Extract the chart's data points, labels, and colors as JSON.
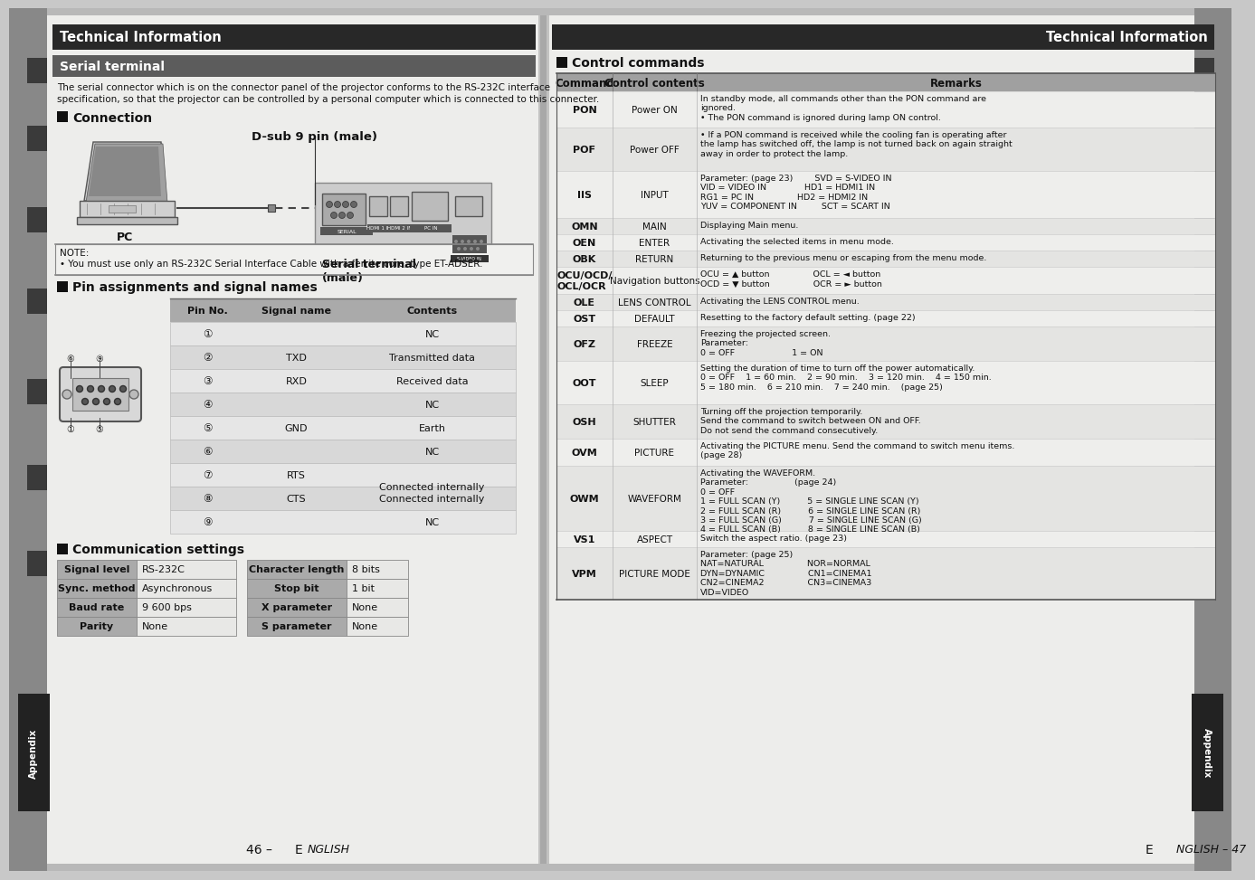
{
  "bg_color": "#c8c8c8",
  "page_bg_left": "#f0efed",
  "page_bg_right": "#f0efed",
  "header_bg": "#2a2a2a",
  "serial_header_bg": "#5a5a5a",
  "table_header_bg": "#a0a0a0",
  "table_row_light": "#e8e8e8",
  "table_row_dark": "#d4d4d4",
  "left_title": "Technical Information",
  "right_title": "Technical Information",
  "serial_terminal_title": "Serial terminal",
  "serial_desc_line1": "The serial connector which is on the connector panel of the projector conforms to the RS-232C interface",
  "serial_desc_line2": "specification, so that the projector can be controlled by a personal computer which is connected to this connecter.",
  "connection_title": "Connection",
  "dsub_label": "D-sub 9 pin (male)",
  "pc_label": "PC",
  "serial_terminal_label": "Serial terminal\n(male)",
  "note_text": "NOTE:\n• You must use only an RS-232C Serial Interface Cable with a ferrite core, type ET-ADSER.",
  "pin_title": "Pin assignments and signal names",
  "pin_headers": [
    "Pin No.",
    "Signal name",
    "Contents"
  ],
  "pin_rows": [
    [
      "①",
      "",
      "NC"
    ],
    [
      "②",
      "TXD",
      "Transmitted data"
    ],
    [
      "③",
      "RXD",
      "Received data"
    ],
    [
      "④",
      "",
      "NC"
    ],
    [
      "⑤",
      "GND",
      "Earth"
    ],
    [
      "⑥",
      "",
      "NC"
    ],
    [
      "⑦",
      "RTS",
      ""
    ],
    [
      "⑧",
      "CTS",
      "Connected internally"
    ],
    [
      "⑨",
      "",
      "NC"
    ]
  ],
  "pin_contents_merged": {
    "6": "Connected internally",
    "7": "Connected internally"
  },
  "comm_title": "Communication settings",
  "comm_left_rows": [
    [
      "Signal level",
      "RS-232C"
    ],
    [
      "Sync. method",
      "Asynchronous"
    ],
    [
      "Baud rate",
      "9 600 bps"
    ],
    [
      "Parity",
      "None"
    ]
  ],
  "comm_right_rows": [
    [
      "Character length",
      "8 bits"
    ],
    [
      "Stop bit",
      "1 bit"
    ],
    [
      "X parameter",
      "None"
    ],
    [
      "S parameter",
      "None"
    ]
  ],
  "control_title": "Control commands",
  "control_headers": [
    "Command",
    "Control contents",
    "Remarks"
  ],
  "control_rows": [
    [
      "PON",
      "Power ON",
      "In standby mode, all commands other than the PON command are\nignored.\n• The PON command is ignored during lamp ON control."
    ],
    [
      "POF",
      "Power OFF",
      "• If a PON command is received while the cooling fan is operating after\nthe lamp has switched off, the lamp is not turned back on again straight\naway in order to protect the lamp."
    ],
    [
      "IIS",
      "INPUT",
      "Parameter: (page 23)        SVD = S-VIDEO IN\nVID = VIDEO IN              HD1 = HDMI1 IN\nRG1 = PC IN                HD2 = HDMI2 IN\nYUV = COMPONENT IN         SCT = SCART IN"
    ],
    [
      "OMN",
      "MAIN",
      "Displaying Main menu."
    ],
    [
      "OEN",
      "ENTER",
      "Activating the selected items in menu mode."
    ],
    [
      "OBK",
      "RETURN",
      "Returning to the previous menu or escaping from the menu mode."
    ],
    [
      "OCU/OCD/\nOCL/OCR",
      "Navigation buttons",
      "OCU = ▲ button                OCL = ◄ button\nOCD = ▼ button                OCR = ► button"
    ],
    [
      "OLE",
      "LENS CONTROL",
      "Activating the LENS CONTROL menu."
    ],
    [
      "OST",
      "DEFAULT",
      "Resetting to the factory default setting. (page 22)"
    ],
    [
      "OFZ",
      "FREEZE",
      "Freezing the projected screen.\nParameter:\n0 = OFF                     1 = ON"
    ],
    [
      "OOT",
      "SLEEP",
      "Setting the duration of time to turn off the power automatically.\n0 = OFF    1 = 60 min.    2 = 90 min.    3 = 120 min.    4 = 150 min.\n5 = 180 min.    6 = 210 min.    7 = 240 min.    (page 25)"
    ],
    [
      "OSH",
      "SHUTTER",
      "Turning off the projection temporarily.\nSend the command to switch between ON and OFF.\nDo not send the command consecutively."
    ],
    [
      "OVM",
      "PICTURE",
      "Activating the PICTURE menu. Send the command to switch menu items.\n(page 28)"
    ],
    [
      "OWM",
      "WAVEFORM",
      "Activating the WAVEFORM.\nParameter:                 (page 24)\n0 = OFF\n1 = FULL SCAN (Y)          5 = SINGLE LINE SCAN (Y)\n2 = FULL SCAN (R)          6 = SINGLE LINE SCAN (R)\n3 = FULL SCAN (G)          7 = SINGLE LINE SCAN (G)\n4 = FULL SCAN (B)          8 = SINGLE LINE SCAN (B)"
    ],
    [
      "VS1",
      "ASPECT",
      "Switch the aspect ratio. (page 23)"
    ],
    [
      "VPM",
      "PICTURE MODE",
      "Parameter: (page 25)\nNAT=NATURAL                NOR=NORMAL\nDYN=DYNAMIC                CN1=CINEMA1\nCN2=CINEMA2                CN3=CINEMA3\nVID=VIDEO"
    ]
  ],
  "appendix_text": "Appendix",
  "page_left": "46 – E",
  "page_left2": "NGLISH",
  "page_right": "E",
  "page_right2": "NGLISH – 47"
}
